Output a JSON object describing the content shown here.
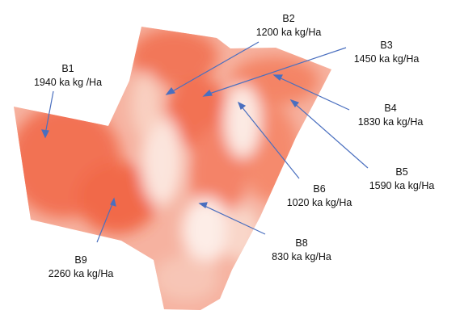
{
  "colors": {
    "field": "#f25f3c",
    "field_light": "#fbe3da",
    "arrow": "#4a6fbf",
    "text": "#111111"
  },
  "blocks": [
    {
      "id": "B1",
      "value": "1940 ka kg /Ha"
    },
    {
      "id": "B2",
      "value": "1200 ka kg/Ha"
    },
    {
      "id": "B3",
      "value": "1450 ka kg/Ha"
    },
    {
      "id": "B4",
      "value": "1830 ka kg/Ha"
    },
    {
      "id": "B5",
      "value": "1590 ka kg/Ha"
    },
    {
      "id": "B6",
      "value": "1020 ka kg/Ha"
    },
    {
      "id": "B8",
      "value": "830 ka kg/Ha"
    },
    {
      "id": "B9",
      "value": "2260 ka kg/Ha"
    }
  ]
}
